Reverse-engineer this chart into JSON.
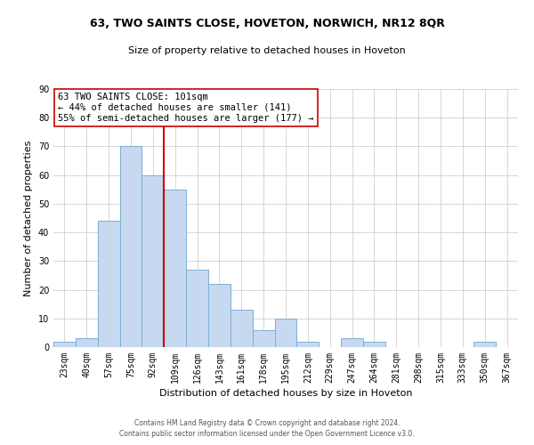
{
  "title": "63, TWO SAINTS CLOSE, HOVETON, NORWICH, NR12 8QR",
  "subtitle": "Size of property relative to detached houses in Hoveton",
  "xlabel": "Distribution of detached houses by size in Hoveton",
  "ylabel": "Number of detached properties",
  "bar_labels": [
    "23sqm",
    "40sqm",
    "57sqm",
    "75sqm",
    "92sqm",
    "109sqm",
    "126sqm",
    "143sqm",
    "161sqm",
    "178sqm",
    "195sqm",
    "212sqm",
    "229sqm",
    "247sqm",
    "264sqm",
    "281sqm",
    "298sqm",
    "315sqm",
    "333sqm",
    "350sqm",
    "367sqm"
  ],
  "bar_values": [
    2,
    3,
    44,
    70,
    60,
    55,
    27,
    22,
    13,
    6,
    10,
    2,
    0,
    3,
    2,
    0,
    0,
    0,
    0,
    2,
    0
  ],
  "bar_color": "#c6d9f1",
  "bar_edge_color": "#7bafd4",
  "vline_color": "#cc0000",
  "vline_pos": 4.5,
  "ylim": [
    0,
    90
  ],
  "yticks": [
    0,
    10,
    20,
    30,
    40,
    50,
    60,
    70,
    80,
    90
  ],
  "annotation_title": "63 TWO SAINTS CLOSE: 101sqm",
  "annotation_line1": "← 44% of detached houses are smaller (141)",
  "annotation_line2": "55% of semi-detached houses are larger (177) →",
  "annotation_box_facecolor": "#ffffff",
  "annotation_box_edgecolor": "#cc0000",
  "footer1": "Contains HM Land Registry data © Crown copyright and database right 2024.",
  "footer2": "Contains public sector information licensed under the Open Government Licence v3.0.",
  "grid_color": "#d0d0d0",
  "title_fontsize": 9,
  "subtitle_fontsize": 8,
  "ylabel_fontsize": 8,
  "xlabel_fontsize": 8,
  "tick_fontsize": 7,
  "annotation_fontsize": 7.5,
  "footer_fontsize": 5.5
}
